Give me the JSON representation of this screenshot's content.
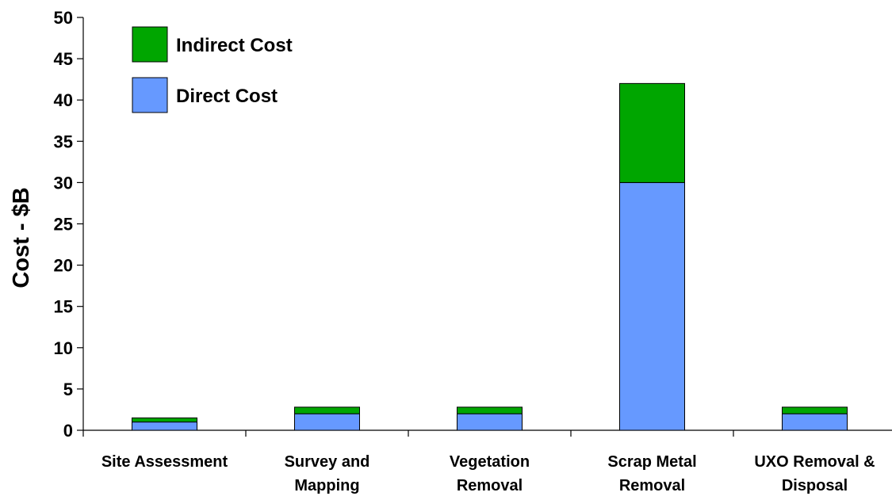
{
  "chart_data": {
    "type": "bar",
    "stacked": true,
    "categories": [
      [
        "Site Assessment"
      ],
      [
        "Survey and",
        "Mapping"
      ],
      [
        "Vegetation",
        "Removal"
      ],
      [
        "Scrap Metal",
        "Removal"
      ],
      [
        "UXO Removal &",
        "Disposal"
      ]
    ],
    "series": [
      {
        "name": "Direct Cost",
        "color": "#6699FF",
        "values": [
          1.0,
          2.0,
          2.0,
          30.0,
          2.0
        ]
      },
      {
        "name": "Indirect Cost",
        "color": "#00A600",
        "values": [
          0.5,
          0.8,
          0.8,
          12.0,
          0.8
        ]
      }
    ],
    "ylabel": "Cost - $B",
    "xlabel": "",
    "title": "",
    "ylim": [
      0,
      50
    ],
    "yticks": [
      0,
      5,
      10,
      15,
      20,
      25,
      30,
      35,
      40,
      45,
      50
    ],
    "grid": false,
    "legend": {
      "placement": "top-left",
      "order": [
        "Indirect Cost",
        "Direct Cost"
      ]
    }
  }
}
